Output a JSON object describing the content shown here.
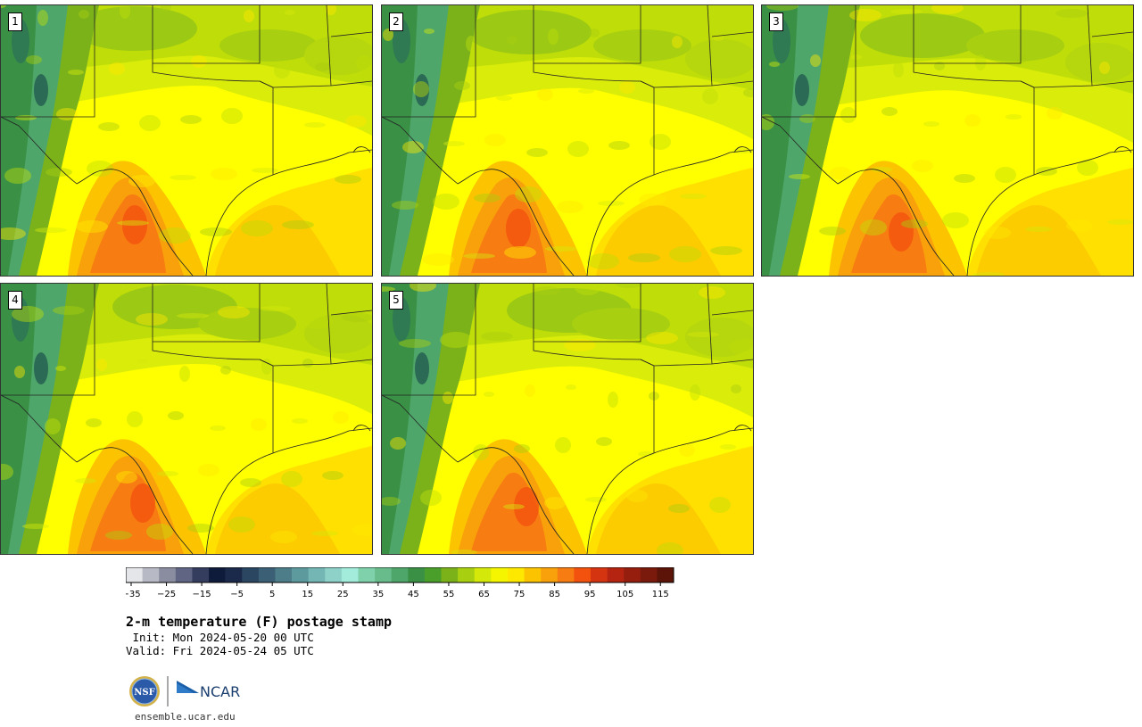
{
  "panels": [
    {
      "label": "1",
      "variant": 0
    },
    {
      "label": "2",
      "variant": 1
    },
    {
      "label": "3",
      "variant": 2
    },
    {
      "label": "4",
      "variant": 3
    },
    {
      "label": "5",
      "variant": 4
    }
  ],
  "colorbar": {
    "colors": [
      "#e4e6ea",
      "#b7b9c5",
      "#8a8d9f",
      "#5f6582",
      "#353d5f",
      "#0f1b3a",
      "#1b2a4a",
      "#2b4660",
      "#3b5f74",
      "#4d7d88",
      "#5c9a9e",
      "#74b6b3",
      "#8ed1c8",
      "#a3ecdc",
      "#7ed1aa",
      "#68bb8a",
      "#4fa66a",
      "#3a9146",
      "#4a9e2a",
      "#7bb21a",
      "#a8cf10",
      "#d4e80a",
      "#f5f500",
      "#ffe800",
      "#fbc300",
      "#f9a10a",
      "#f77c12",
      "#f2520e",
      "#d43410",
      "#b52410",
      "#951e0e",
      "#7a1a0c",
      "#5c1409"
    ],
    "tick_labels": [
      "−35",
      "−25",
      "−15",
      "−5",
      "5",
      "15",
      "25",
      "35",
      "45",
      "55",
      "65",
      "75",
      "85",
      "95",
      "105",
      "115"
    ]
  },
  "title": "2-m temperature (F) postage stamp",
  "init_line": " Init: Mon 2024-05-20 00 UTC",
  "valid_line": "Valid: Fri 2024-05-24 05 UTC",
  "logos": {
    "nsf": "NSF",
    "ncar": "NCAR"
  },
  "site": "ensemble.ucar.edu"
}
